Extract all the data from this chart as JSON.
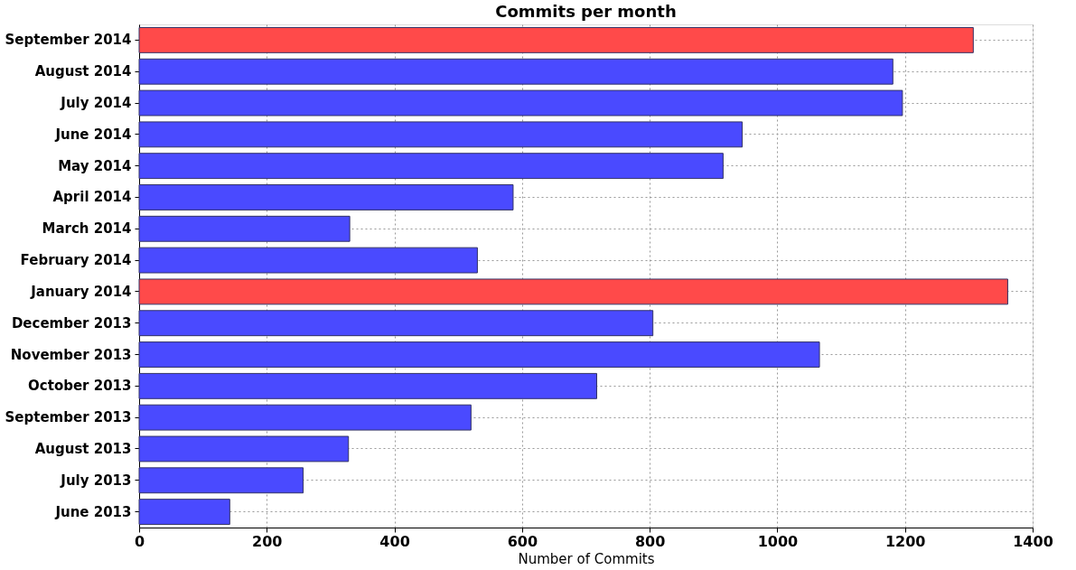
{
  "chart_data": {
    "type": "bar",
    "orientation": "horizontal",
    "title": "Commits per month",
    "xlabel": "Number of Commits",
    "categories": [
      "September 2014",
      "August 2014",
      "July 2014",
      "June 2014",
      "May 2014",
      "April 2014",
      "March 2014",
      "February 2014",
      "January 2014",
      "December 2013",
      "November 2013",
      "October 2013",
      "September 2013",
      "August 2013",
      "July 2013",
      "June 2013"
    ],
    "values": [
      1307,
      1181,
      1196,
      945,
      915,
      586,
      330,
      530,
      1361,
      805,
      1066,
      717,
      520,
      328,
      257,
      142
    ],
    "colors": [
      "#ff4a4a",
      "#4a4aff",
      "#4a4aff",
      "#4a4aff",
      "#4a4aff",
      "#4a4aff",
      "#4a4aff",
      "#4a4aff",
      "#ff4a4a",
      "#4a4aff",
      "#4a4aff",
      "#4a4aff",
      "#4a4aff",
      "#4a4aff",
      "#4a4aff",
      "#4a4aff"
    ],
    "xlim": [
      0,
      1400
    ],
    "xticks": [
      0,
      200,
      400,
      600,
      800,
      1000,
      1200,
      1400
    ],
    "grid": true
  }
}
